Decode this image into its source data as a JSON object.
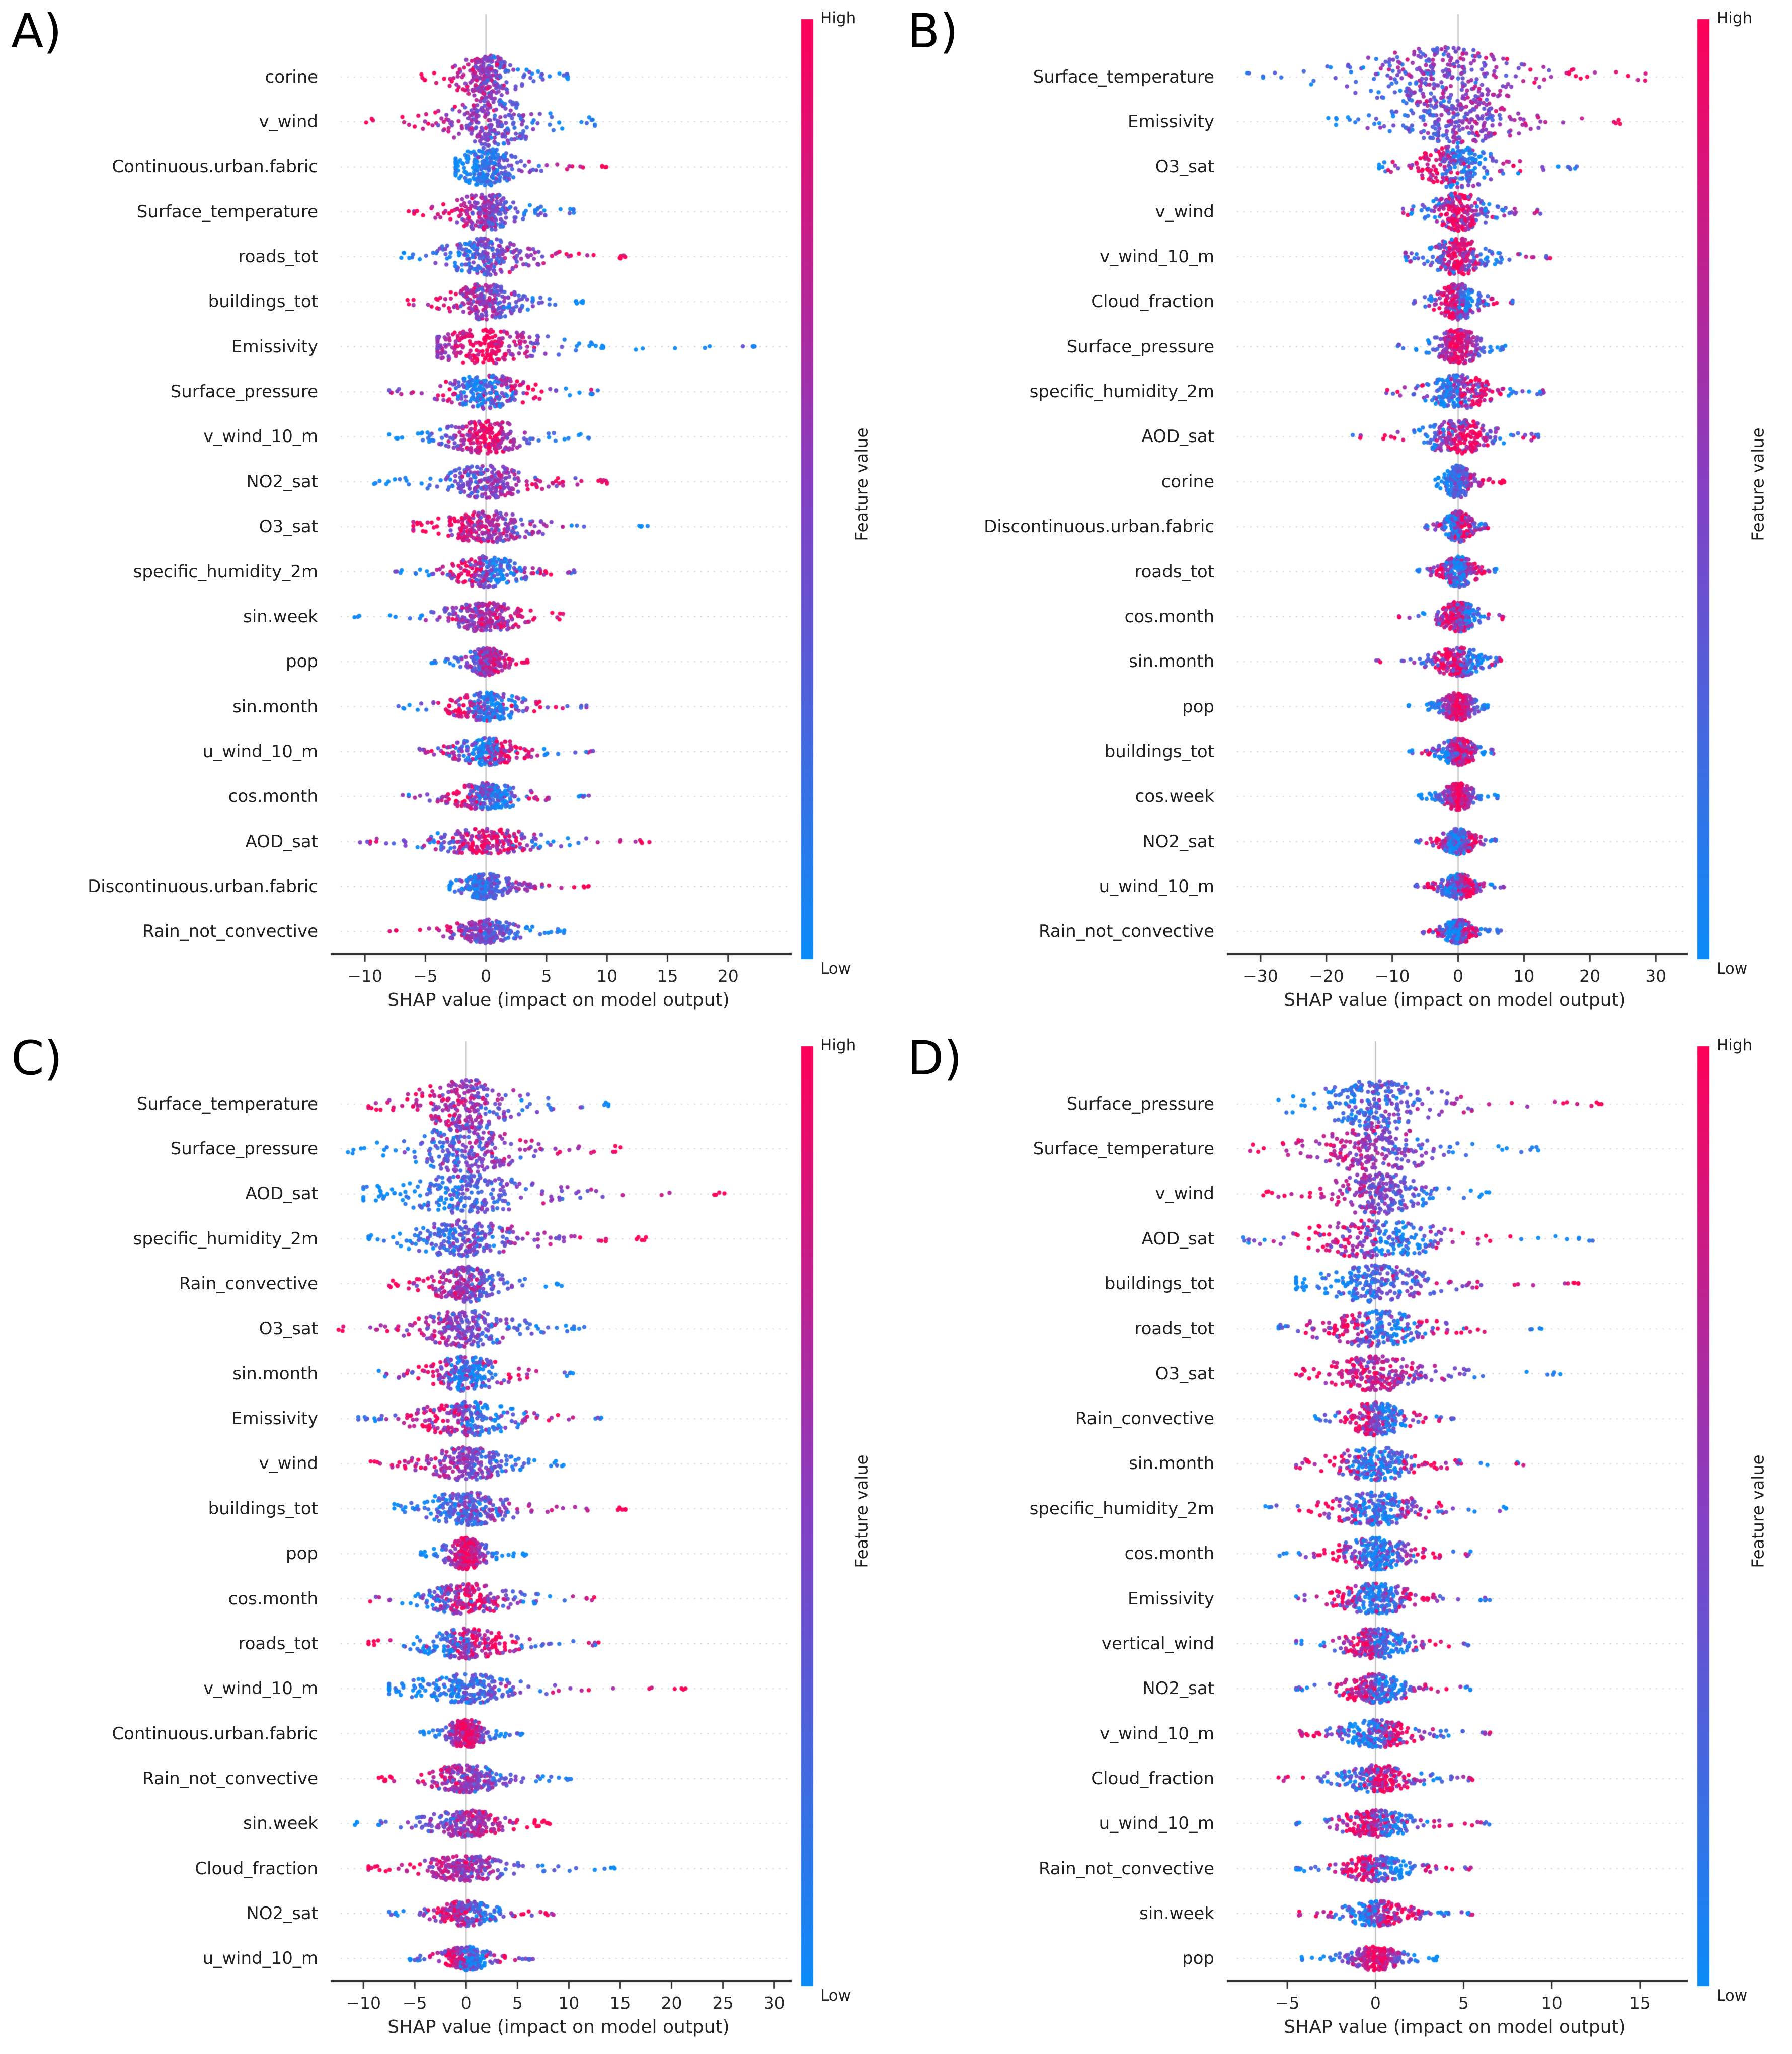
{
  "figure": {
    "background": "#ffffff"
  },
  "colorbar": {
    "label": "Feature value",
    "high": "High",
    "low": "Low",
    "color_low": "#0a8cf8",
    "color_mid": "#8440c4",
    "color_high": "#fe0058"
  },
  "chart_data": [
    {
      "type": "scatter",
      "subtype": "shap-beeswarm",
      "panel": "A)",
      "xlabel": "SHAP value (impact on model output)",
      "xlim": [
        -12.5,
        24.5
      ],
      "xticks": [
        -10,
        -5,
        0,
        5,
        10,
        15,
        20
      ],
      "legend_position": "right-colorbar",
      "grid": "row-dotted",
      "features": [
        {
          "name": "corine",
          "range": [
            -5.5,
            7
          ],
          "trend": "red-left",
          "w": 1.1
        },
        {
          "name": "v_wind",
          "range": [
            -10,
            9
          ],
          "trend": "red-left",
          "mode": 0.5,
          "w": 1.2
        },
        {
          "name": "Continuous.urban.fabric",
          "range": [
            -2.5,
            10
          ],
          "trend": "red-right"
        },
        {
          "name": "Surface_temperature",
          "range": [
            -6.5,
            7.5
          ],
          "trend": "red-left"
        },
        {
          "name": "roads_tot",
          "range": [
            -7,
            11.5
          ],
          "trend": "red-right"
        },
        {
          "name": "buildings_tot",
          "range": [
            -6.5,
            8
          ],
          "trend": "red-left"
        },
        {
          "name": "Emissivity",
          "range": [
            -4,
            22.5
          ],
          "trend": "red-center"
        },
        {
          "name": "Surface_pressure",
          "range": [
            -8,
            9.5
          ],
          "trend": "mixed"
        },
        {
          "name": "v_wind_10_m",
          "range": [
            -8,
            8.5
          ],
          "trend": "red-center"
        },
        {
          "name": "NO2_sat",
          "range": [
            -9.5,
            10
          ],
          "trend": "red-right"
        },
        {
          "name": "O3_sat",
          "range": [
            -6,
            13.5
          ],
          "trend": "red-left"
        },
        {
          "name": "specific_humidity_2m",
          "range": [
            -7.5,
            7.5
          ],
          "trend": "mixed"
        },
        {
          "name": "sin.week",
          "range": [
            -11,
            6.5
          ],
          "trend": "red-right"
        },
        {
          "name": "pop",
          "range": [
            -4.5,
            3.5
          ],
          "trend": "red-right"
        },
        {
          "name": "sin.month",
          "range": [
            -7.5,
            8.5
          ],
          "trend": "mixed"
        },
        {
          "name": "u_wind_10_m",
          "range": [
            -5.5,
            9
          ],
          "trend": "mixed"
        },
        {
          "name": "cos.month",
          "range": [
            -7,
            8.5
          ],
          "trend": "mixed"
        },
        {
          "name": "AOD_sat",
          "range": [
            -10.5,
            13.5
          ],
          "trend": "mixed"
        },
        {
          "name": "Discontinuous.urban.fabric",
          "range": [
            -3,
            8.5
          ],
          "trend": "red-right"
        },
        {
          "name": "Rain_not_convective",
          "range": [
            -8,
            6.5
          ],
          "trend": "red-left"
        }
      ]
    },
    {
      "type": "scatter",
      "subtype": "shap-beeswarm",
      "panel": "B)",
      "xlabel": "SHAP value (impact on model output)",
      "xlim": [
        -34.5,
        33.5
      ],
      "xticks": [
        -30,
        -20,
        -10,
        0,
        10,
        20,
        30
      ],
      "legend_position": "right-colorbar",
      "grid": "row-dotted",
      "features": [
        {
          "name": "Surface_temperature",
          "range": [
            -32,
            28.5
          ],
          "trend": "red-right",
          "mode": -3,
          "w": 1.5
        },
        {
          "name": "Emissivity",
          "range": [
            -20,
            25
          ],
          "trend": "red-right",
          "w": 1.1
        },
        {
          "name": "O3_sat",
          "range": [
            -12,
            18
          ],
          "trend": "mixed",
          "w": 1.1
        },
        {
          "name": "v_wind",
          "range": [
            -8.5,
            12.5
          ],
          "trend": "mixed"
        },
        {
          "name": "v_wind_10_m",
          "range": [
            -8,
            14
          ],
          "trend": "mixed"
        },
        {
          "name": "Cloud_fraction",
          "range": [
            -7,
            8.5
          ],
          "trend": "mixed"
        },
        {
          "name": "Surface_pressure",
          "range": [
            -9.5,
            7.5
          ],
          "trend": "red-center"
        },
        {
          "name": "specific_humidity_2m",
          "range": [
            -11,
            13
          ],
          "trend": "mixed"
        },
        {
          "name": "AOD_sat",
          "range": [
            -16,
            12.5
          ],
          "trend": "mixed"
        },
        {
          "name": "corine",
          "range": [
            -3.5,
            7
          ],
          "trend": "red-right"
        },
        {
          "name": "Discontinuous.urban.fabric",
          "range": [
            -5,
            4.5
          ],
          "trend": "mixed"
        },
        {
          "name": "roads_tot",
          "range": [
            -6.5,
            6
          ],
          "trend": "mixed"
        },
        {
          "name": "cos.month",
          "range": [
            -9,
            7
          ],
          "trend": "mixed"
        },
        {
          "name": "sin.month",
          "range": [
            -12.5,
            6.5
          ],
          "trend": "mixed"
        },
        {
          "name": "pop",
          "range": [
            -8,
            4.5
          ],
          "trend": "red-center"
        },
        {
          "name": "buildings_tot",
          "range": [
            -7.5,
            5.5
          ],
          "trend": "mixed"
        },
        {
          "name": "cos.week",
          "range": [
            -6,
            6
          ],
          "trend": "red-center"
        },
        {
          "name": "NO2_sat",
          "range": [
            -6.5,
            6
          ],
          "trend": "mixed"
        },
        {
          "name": "u_wind_10_m",
          "range": [
            -6.5,
            7
          ],
          "trend": "mixed"
        },
        {
          "name": "Rain_not_convective",
          "range": [
            -5.5,
            6.5
          ],
          "trend": "mixed"
        }
      ]
    },
    {
      "type": "scatter",
      "subtype": "shap-beeswarm",
      "panel": "C)",
      "xlabel": "SHAP value (impact on model output)",
      "xlim": [
        -12.8,
        30.8
      ],
      "xticks": [
        -10,
        -5,
        0,
        5,
        10,
        15,
        20,
        25,
        30
      ],
      "legend_position": "right-colorbar",
      "grid": "row-dotted",
      "features": [
        {
          "name": "Surface_temperature",
          "range": [
            -9.5,
            14.5
          ],
          "trend": "red-left",
          "w": 1.2
        },
        {
          "name": "Surface_pressure",
          "range": [
            -11.5,
            15.5
          ],
          "trend": "red-right",
          "w": 1.2
        },
        {
          "name": "AOD_sat",
          "range": [
            -10,
            25.5
          ],
          "trend": "red-right"
        },
        {
          "name": "specific_humidity_2m",
          "range": [
            -9.5,
            17.5
          ],
          "trend": "red-right"
        },
        {
          "name": "Rain_convective",
          "range": [
            -7.5,
            9.5
          ],
          "trend": "red-left"
        },
        {
          "name": "O3_sat",
          "range": [
            -12.5,
            11.5
          ],
          "trend": "red-left"
        },
        {
          "name": "sin.month",
          "range": [
            -8.5,
            10.5
          ],
          "trend": "mixed"
        },
        {
          "name": "Emissivity",
          "range": [
            -10.5,
            13.5
          ],
          "trend": "mixed"
        },
        {
          "name": "v_wind",
          "range": [
            -9.5,
            9.5
          ],
          "trend": "red-left"
        },
        {
          "name": "buildings_tot",
          "range": [
            -7,
            15.5
          ],
          "trend": "red-right"
        },
        {
          "name": "pop",
          "range": [
            -4.5,
            6
          ],
          "trend": "red-center"
        },
        {
          "name": "cos.month",
          "range": [
            -9.5,
            12.5
          ],
          "trend": "mixed"
        },
        {
          "name": "roads_tot",
          "range": [
            -9.5,
            13
          ],
          "trend": "mixed"
        },
        {
          "name": "v_wind_10_m",
          "range": [
            -7.5,
            21.5
          ],
          "trend": "red-right"
        },
        {
          "name": "Continuous.urban.fabric",
          "range": [
            -4.5,
            5.5
          ],
          "trend": "red-center"
        },
        {
          "name": "Rain_not_convective",
          "range": [
            -8.5,
            10.5
          ],
          "trend": "red-left"
        },
        {
          "name": "sin.week",
          "range": [
            -11.5,
            8.5
          ],
          "trend": "red-right"
        },
        {
          "name": "Cloud_fraction",
          "range": [
            -9.5,
            14.5
          ],
          "trend": "red-left"
        },
        {
          "name": "NO2_sat",
          "range": [
            -7.5,
            8.5
          ],
          "trend": "mixed"
        },
        {
          "name": "u_wind_10_m",
          "range": [
            -5.5,
            6.5
          ],
          "trend": "mixed"
        }
      ]
    },
    {
      "type": "scatter",
      "subtype": "shap-beeswarm",
      "panel": "D)",
      "xlabel": "SHAP value (impact on model output)",
      "xlim": [
        -8.2,
        17.2
      ],
      "xticks": [
        -5,
        0,
        5,
        10,
        15
      ],
      "legend_position": "right-colorbar",
      "grid": "row-dotted",
      "features": [
        {
          "name": "Surface_pressure",
          "range": [
            -5.5,
            13
          ],
          "trend": "red-right",
          "w": 1.15
        },
        {
          "name": "Surface_temperature",
          "range": [
            -7.5,
            9.5
          ],
          "trend": "red-left",
          "w": 1.15
        },
        {
          "name": "v_wind",
          "range": [
            -6.5,
            6.5
          ],
          "trend": "red-left",
          "w": 1.1
        },
        {
          "name": "AOD_sat",
          "range": [
            -7.5,
            12.5
          ],
          "trend": "mixed"
        },
        {
          "name": "buildings_tot",
          "range": [
            -4.5,
            11.5
          ],
          "trend": "red-right"
        },
        {
          "name": "roads_tot",
          "range": [
            -5.5,
            9.5
          ],
          "trend": "mixed"
        },
        {
          "name": "O3_sat",
          "range": [
            -4.5,
            10.5
          ],
          "trend": "red-left"
        },
        {
          "name": "Rain_convective",
          "range": [
            -3.5,
            4.5
          ],
          "trend": "mixed"
        },
        {
          "name": "sin.month",
          "range": [
            -4.5,
            8.5
          ],
          "trend": "mixed"
        },
        {
          "name": "specific_humidity_2m",
          "range": [
            -6.5,
            7.5
          ],
          "trend": "mixed"
        },
        {
          "name": "cos.month",
          "range": [
            -5.5,
            5.5
          ],
          "trend": "mixed"
        },
        {
          "name": "Emissivity",
          "range": [
            -4.5,
            6.5
          ],
          "trend": "mixed"
        },
        {
          "name": "vertical_wind",
          "range": [
            -4.5,
            5.5
          ],
          "trend": "mixed"
        },
        {
          "name": "NO2_sat",
          "range": [
            -4.5,
            5.5
          ],
          "trend": "mixed"
        },
        {
          "name": "v_wind_10_m",
          "range": [
            -4.5,
            6.5
          ],
          "trend": "mixed"
        },
        {
          "name": "Cloud_fraction",
          "range": [
            -5.5,
            5.5
          ],
          "trend": "mixed"
        },
        {
          "name": "u_wind_10_m",
          "range": [
            -4.5,
            6.5
          ],
          "trend": "mixed"
        },
        {
          "name": "Rain_not_convective",
          "range": [
            -4.5,
            5.5
          ],
          "trend": "mixed"
        },
        {
          "name": "sin.week",
          "range": [
            -4.5,
            5.5
          ],
          "trend": "mixed"
        },
        {
          "name": "pop",
          "range": [
            -4.5,
            3.5
          ],
          "trend": "red-center"
        }
      ]
    }
  ]
}
